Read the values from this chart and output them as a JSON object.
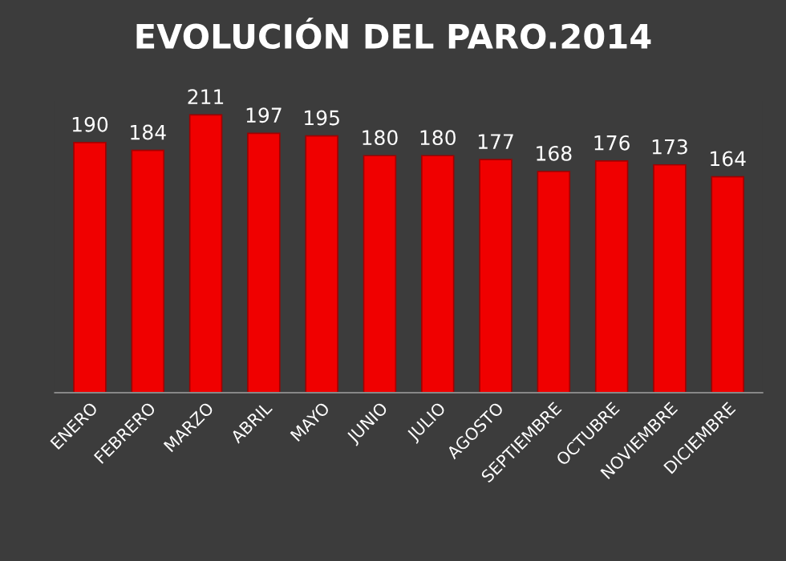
{
  "chart_data": {
    "type": "bar",
    "title": "EVOLUCIÓN DEL PARO.2014",
    "categories": [
      "ENERO",
      "FEBRERO",
      "MARZO",
      "ABRIL",
      "MAYO",
      "JUNIO",
      "JULIO",
      "AGOSTO",
      "SEPTIEMBRE",
      "OCTUBRE",
      "NOVIEMBRE",
      "DICIEMBRE"
    ],
    "values": [
      190,
      184,
      211,
      197,
      195,
      180,
      180,
      177,
      168,
      176,
      173,
      164
    ],
    "color": "#f00000",
    "data_labels": true,
    "grid": false
  }
}
